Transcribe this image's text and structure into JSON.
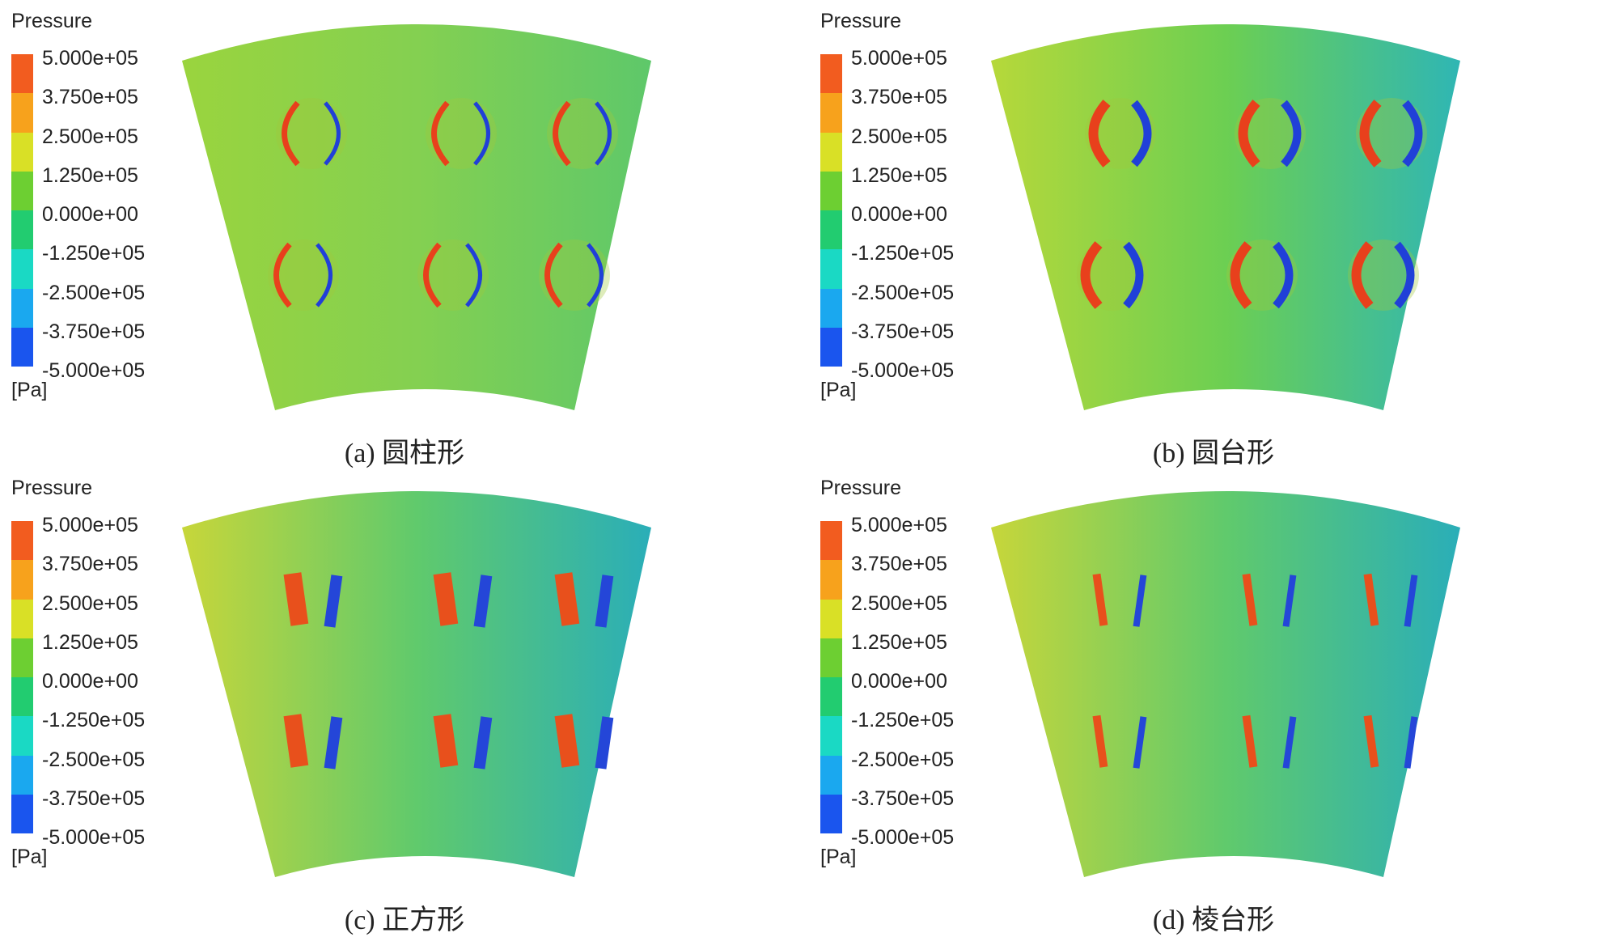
{
  "legend": {
    "title": "Pressure",
    "unit": "[Pa]",
    "ticks": [
      "5.000e+05",
      "3.750e+05",
      "2.500e+05",
      "1.250e+05",
      "0.000e+00",
      "-1.250e+05",
      "-2.500e+05",
      "-3.750e+05",
      "-5.000e+05"
    ],
    "colors": [
      "#f25c1f",
      "#f7a21c",
      "#d9e026",
      "#6dcf32",
      "#22cc70",
      "#1ad9c4",
      "#1aa8ef",
      "#1a55ee"
    ]
  },
  "panels": [
    {
      "caption": "(a) 圆柱形",
      "shape": "cylinder",
      "background": "#8fd14a"
    },
    {
      "caption": "(b) 圆台形",
      "shape": "truncated-cone",
      "background": "#6ccf52"
    },
    {
      "caption": "(c) 正方形",
      "shape": "square",
      "background": "#5cc86f"
    },
    {
      "caption": "(d) 棱台形",
      "shape": "frustum",
      "background": "#5ec86a"
    }
  ]
}
